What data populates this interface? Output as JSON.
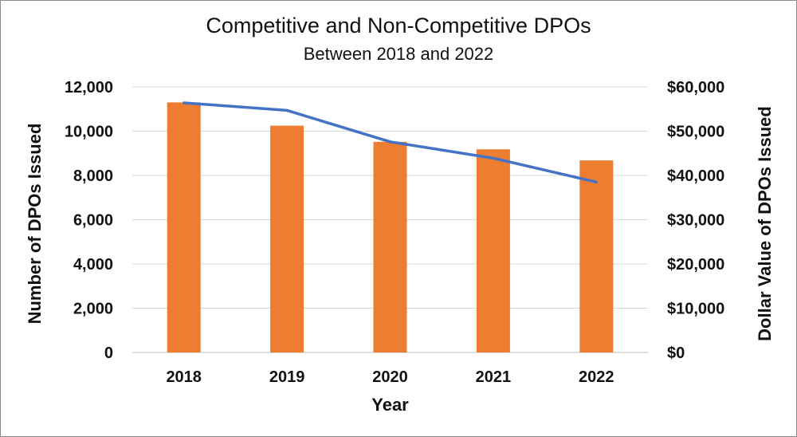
{
  "chart_data": {
    "type": "bar",
    "title": "Competitive and Non-Competitive DPOs",
    "subtitle": "Between 2018 and 2022",
    "xlabel": "Year",
    "ylabel": "Number of DPOs Issued",
    "y2label": "Dollar Value of DPOs Issued",
    "categories": [
      "2018",
      "2019",
      "2020",
      "2021",
      "2022"
    ],
    "ylim": [
      0,
      12000
    ],
    "y2lim": [
      0,
      60000
    ],
    "yticks": [
      "0",
      "2,000",
      "4,000",
      "6,000",
      "8,000",
      "10,000",
      "12,000"
    ],
    "y2ticks": [
      "$0",
      "$10,000",
      "$20,000",
      "$30,000",
      "$40,000",
      "$50,000",
      "$60,000"
    ],
    "grid": true,
    "legend": "none",
    "series": [
      {
        "type": "bar",
        "axis": "left",
        "color": "#ED7D31",
        "values": [
          11300,
          10250,
          9520,
          9180,
          8680
        ]
      },
      {
        "type": "line",
        "axis": "right",
        "color": "#4472C4",
        "values": [
          56400,
          54700,
          47600,
          43900,
          38500
        ]
      }
    ]
  }
}
